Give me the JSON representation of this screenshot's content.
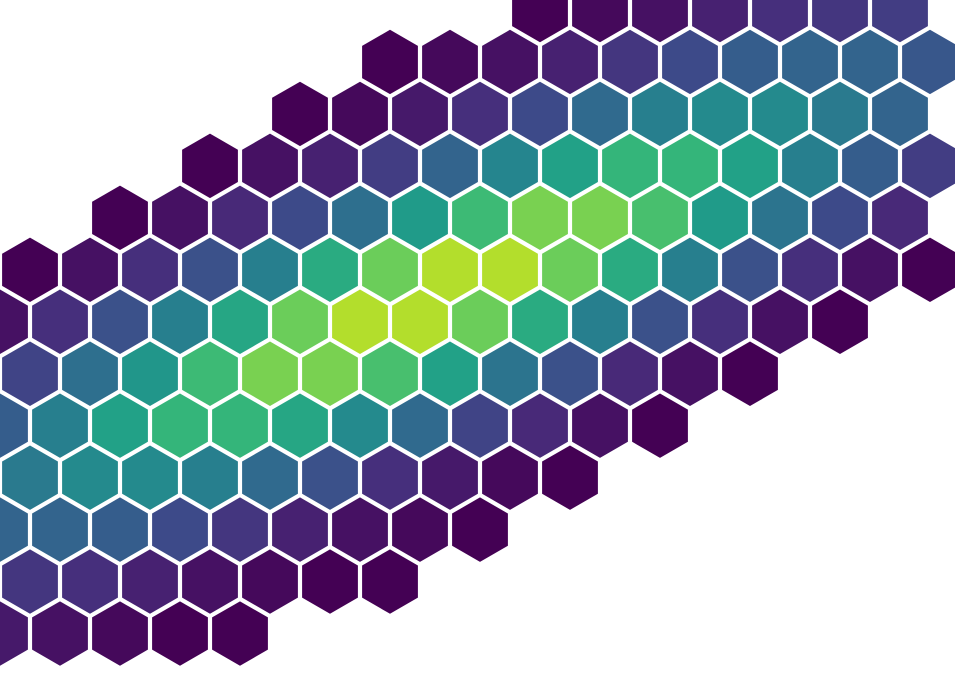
{
  "chart_data": {
    "type": "hexbin",
    "values": [
      [
        null,
        null,
        null,
        null,
        null,
        null,
        null,
        null,
        null,
        1,
        2,
        3,
        5,
        7,
        8,
        9
      ],
      [
        null,
        null,
        null,
        null,
        null,
        null,
        1,
        2,
        3,
        5,
        8,
        11,
        14,
        15,
        15,
        13
      ],
      [
        null,
        null,
        null,
        null,
        null,
        1,
        2,
        4,
        7,
        11,
        16,
        20,
        22,
        22,
        19,
        15
      ],
      [
        null,
        null,
        null,
        1,
        3,
        5,
        9,
        15,
        21,
        26,
        30,
        30,
        26,
        20,
        14,
        9
      ],
      [
        null,
        null,
        1,
        3,
        6,
        11,
        17,
        25,
        31,
        36,
        36,
        32,
        25,
        18,
        11,
        6
      ],
      [
        1,
        3,
        7,
        12,
        20,
        28,
        35,
        40,
        40,
        35,
        28,
        20,
        12,
        7,
        3,
        1
      ],
      [
        3,
        7,
        12,
        20,
        27,
        35,
        40,
        40,
        35,
        28,
        20,
        12,
        7,
        3,
        1,
        null
      ],
      [
        10,
        17,
        24,
        31,
        36,
        36,
        32,
        26,
        18,
        12,
        6,
        3,
        1,
        null,
        null,
        null
      ],
      [
        14,
        20,
        26,
        30,
        30,
        27,
        22,
        16,
        10,
        6,
        3,
        1,
        null,
        null,
        null,
        null
      ],
      [
        19,
        22,
        22,
        20,
        16,
        12,
        7,
        4,
        2,
        1,
        null,
        null,
        null,
        null,
        null,
        null
      ],
      [
        15,
        15,
        14,
        11,
        8,
        5,
        3,
        2,
        1,
        null,
        null,
        null,
        null,
        null,
        null,
        null
      ],
      [
        8,
        7,
        5,
        3,
        2,
        1,
        1,
        null,
        null,
        null,
        null,
        null,
        null,
        null,
        null,
        null
      ],
      [
        4,
        3,
        2,
        1,
        1,
        null,
        null,
        null,
        null,
        null,
        null,
        null,
        null,
        null,
        null,
        null
      ]
    ],
    "colormap": [
      "#440154",
      "#482878",
      "#3e4989",
      "#31688e",
      "#26828e",
      "#1f9e89",
      "#35b779",
      "#6ece58",
      "#b5de2b",
      "#fde725"
    ],
    "clim": [
      1,
      45
    ]
  }
}
